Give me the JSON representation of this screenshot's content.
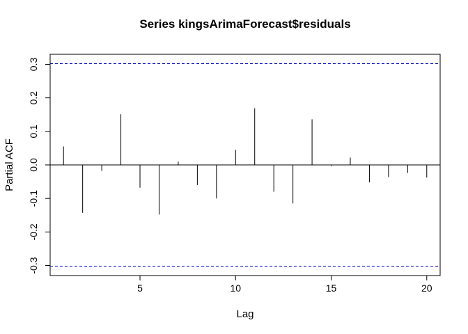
{
  "chart_data": {
    "type": "bar",
    "title": "Series  kingsArimaForecast$residuals",
    "xlabel": "Lag",
    "ylabel": "Partial ACF",
    "xlim": [
      0.3,
      20.7
    ],
    "ylim": [
      -0.33,
      0.33
    ],
    "x_ticks": [
      5,
      10,
      15,
      20
    ],
    "y_ticks": [
      -0.3,
      -0.2,
      -0.1,
      0.0,
      0.1,
      0.2,
      0.3
    ],
    "x_tick_labels": [
      "5",
      "10",
      "15",
      "20"
    ],
    "y_tick_labels": [
      "-0.3",
      "-0.2",
      "-0.1",
      "0.0",
      "0.1",
      "0.2",
      "0.3"
    ],
    "grid": false,
    "confidence_bound": 0.302,
    "confidence_color": "#0000cd",
    "lags": [
      1,
      2,
      3,
      4,
      5,
      6,
      7,
      8,
      9,
      10,
      11,
      12,
      13,
      14,
      15,
      16,
      17,
      18,
      19,
      20
    ],
    "values": [
      0.055,
      -0.143,
      -0.018,
      0.151,
      -0.068,
      -0.148,
      0.01,
      -0.06,
      -0.1,
      0.045,
      0.169,
      -0.08,
      -0.115,
      0.136,
      -0.003,
      0.022,
      -0.052,
      -0.036,
      -0.024,
      -0.038
    ]
  }
}
